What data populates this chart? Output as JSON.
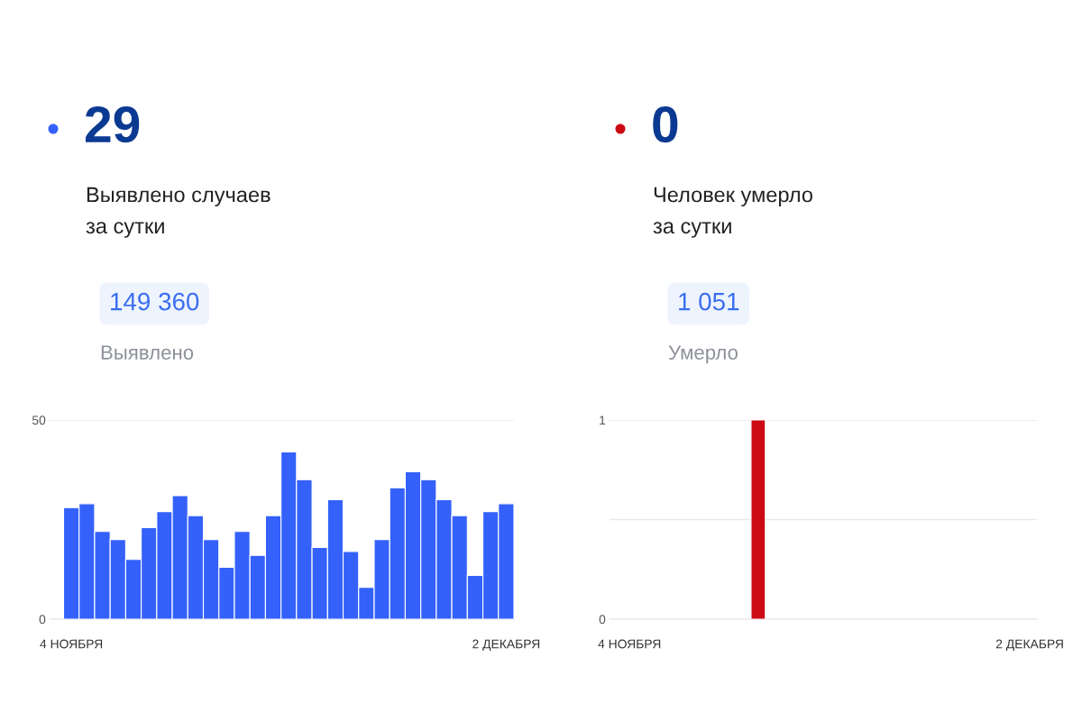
{
  "chart_data": [
    {
      "type": "bar",
      "title": "29",
      "subtitle": "Выявлено случаев\nза сутки",
      "annotations": [
        "149 360",
        "Выявлено"
      ],
      "categories": [
        "4 НОЯБРЯ",
        null,
        null,
        null,
        null,
        null,
        null,
        null,
        null,
        null,
        null,
        null,
        null,
        null,
        null,
        null,
        null,
        null,
        null,
        null,
        null,
        null,
        null,
        null,
        null,
        null,
        null,
        null,
        "2 ДЕКАБРЯ"
      ],
      "values": [
        28,
        29,
        22,
        20,
        15,
        23,
        27,
        31,
        26,
        20,
        13,
        22,
        16,
        26,
        42,
        35,
        18,
        30,
        17,
        8,
        20,
        33,
        37,
        35,
        30,
        26,
        11,
        27,
        29
      ],
      "color": "#3461fa",
      "ylim": [
        0,
        50
      ],
      "yticks": [
        0,
        50
      ],
      "grid": "y"
    },
    {
      "type": "bar",
      "title": "0",
      "subtitle": "Человек умерло\nза сутки",
      "annotations": [
        "1 051",
        "Умерло"
      ],
      "categories": [
        "4 НОЯБРЯ",
        null,
        null,
        null,
        null,
        null,
        null,
        null,
        null,
        null,
        null,
        null,
        null,
        null,
        null,
        null,
        null,
        null,
        null,
        null,
        null,
        null,
        null,
        null,
        null,
        null,
        null,
        null,
        "2 ДЕКАБРЯ"
      ],
      "values": [
        0,
        0,
        0,
        0,
        0,
        0,
        0,
        0,
        0,
        1,
        0,
        0,
        0,
        0,
        0,
        0,
        0,
        0,
        0,
        0,
        0,
        0,
        0,
        0,
        0,
        0,
        0,
        0,
        0
      ],
      "color": "#cc0a14",
      "ylim": [
        0,
        1
      ],
      "yticks": [
        0,
        {
          "value": 0.5,
          "label": null
        },
        1
      ],
      "grid": "y"
    }
  ]
}
